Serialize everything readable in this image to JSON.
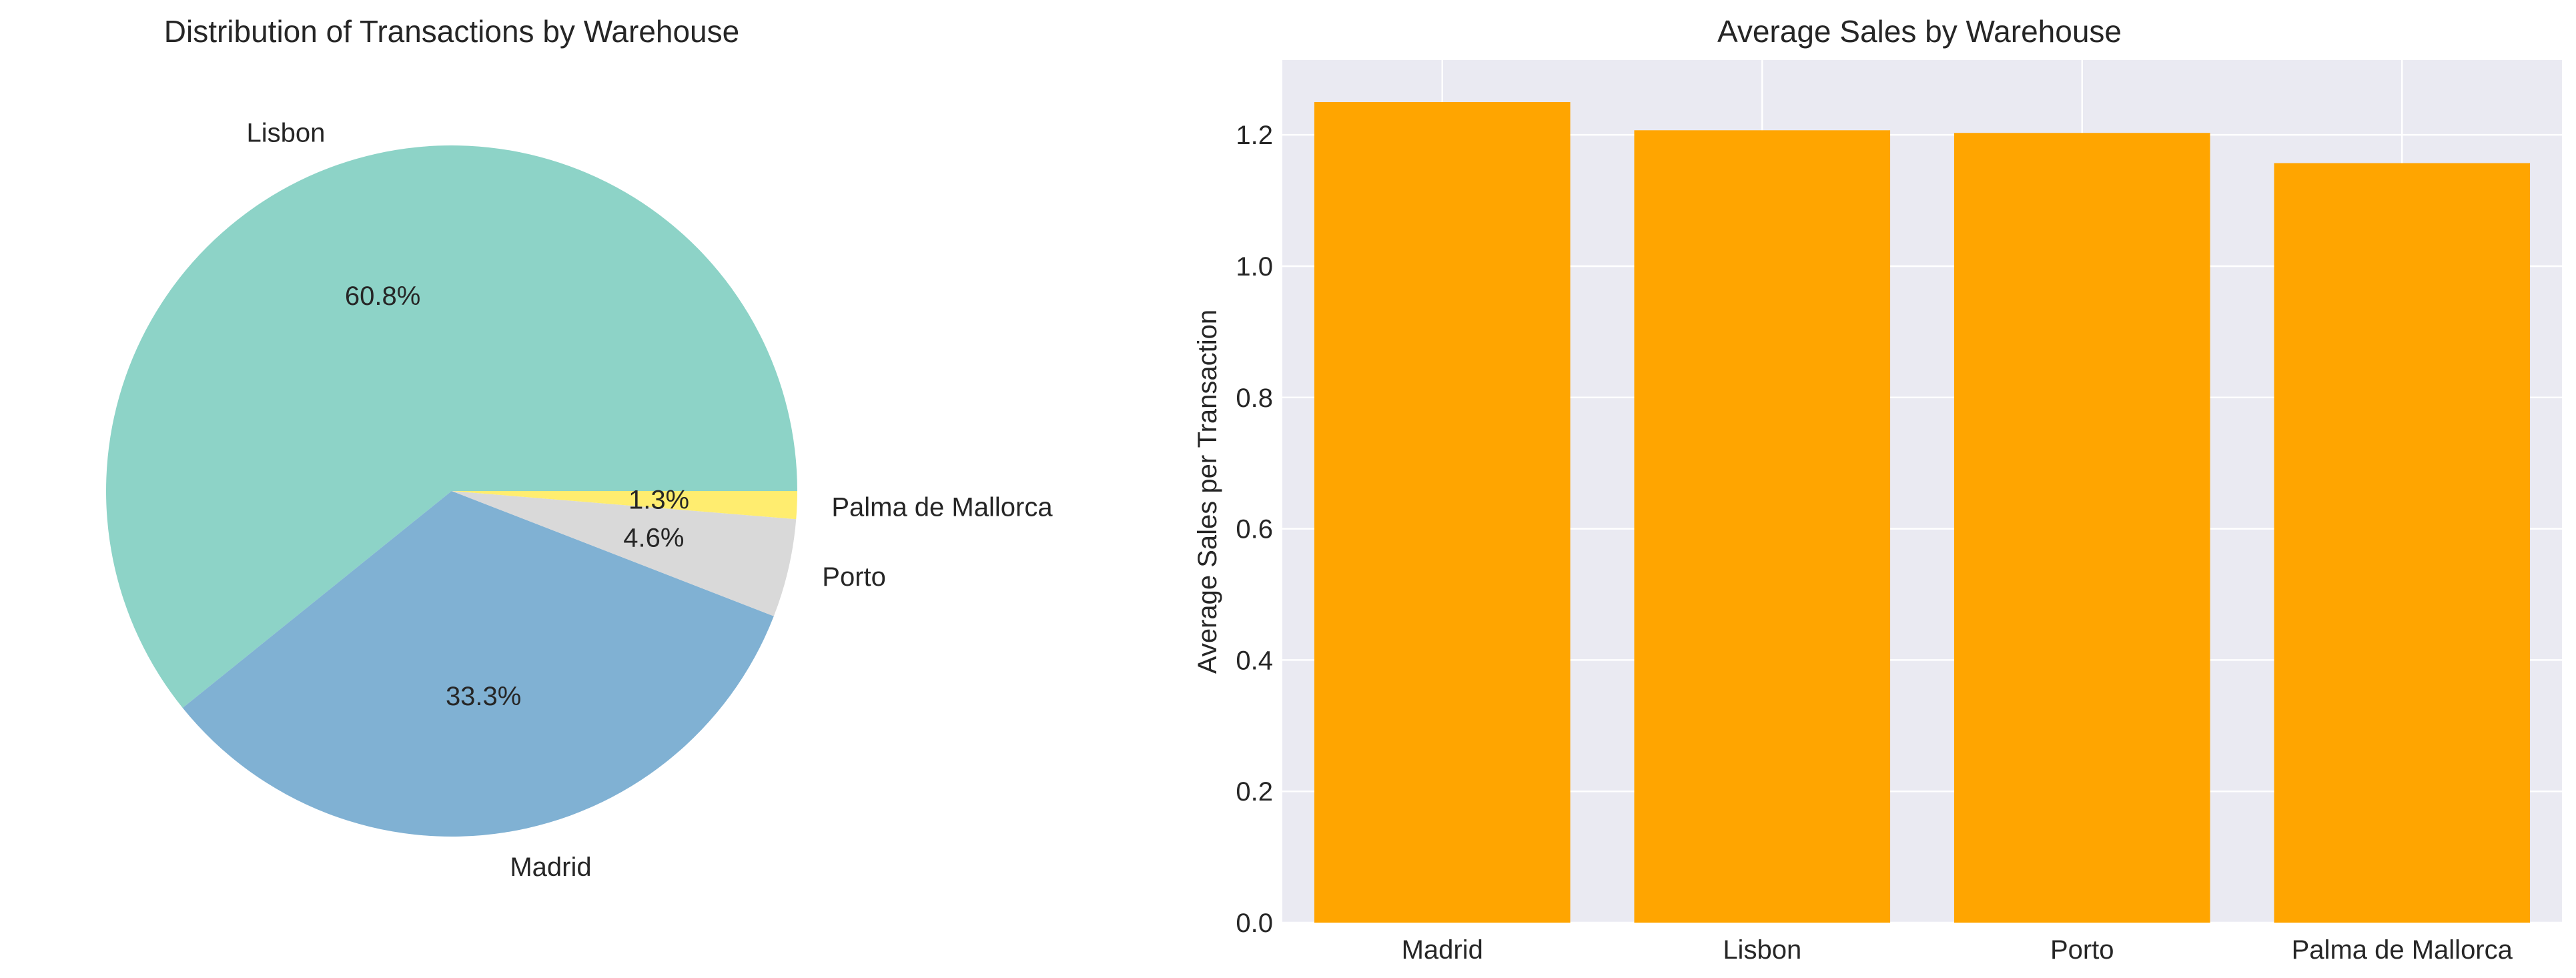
{
  "chart_data": [
    {
      "type": "pie",
      "title": "Distribution of Transactions by Warehouse",
      "categories": [
        "Lisbon",
        "Madrid",
        "Porto",
        "Palma de Mallorca"
      ],
      "values": [
        60.8,
        33.3,
        4.6,
        1.3
      ],
      "value_labels": [
        "60.8%",
        "33.3%",
        "4.6%",
        "1.3%"
      ],
      "colors": [
        "#8dd3c7",
        "#80b1d3",
        "#d9d9d9",
        "#ffed6f"
      ],
      "start_angle": 0,
      "direction": "counterclockwise"
    },
    {
      "type": "bar",
      "title": "Average Sales by Warehouse",
      "categories": [
        "Madrid",
        "Lisbon",
        "Porto",
        "Palma de Mallorca"
      ],
      "values": [
        1.25,
        1.207,
        1.203,
        1.157
      ],
      "xlabel": "",
      "ylabel": "Average Sales per Transaction",
      "ylim": [
        0,
        1.314
      ],
      "yticks": [
        0.0,
        0.2,
        0.4,
        0.6,
        0.8,
        1.0,
        1.2
      ],
      "ytick_labels": [
        "0.0",
        "0.2",
        "0.4",
        "0.6",
        "0.8",
        "1.0",
        "1.2"
      ],
      "bar_color": "#ffa500",
      "plot_background": "#eaeaf2",
      "grid": true
    }
  ]
}
